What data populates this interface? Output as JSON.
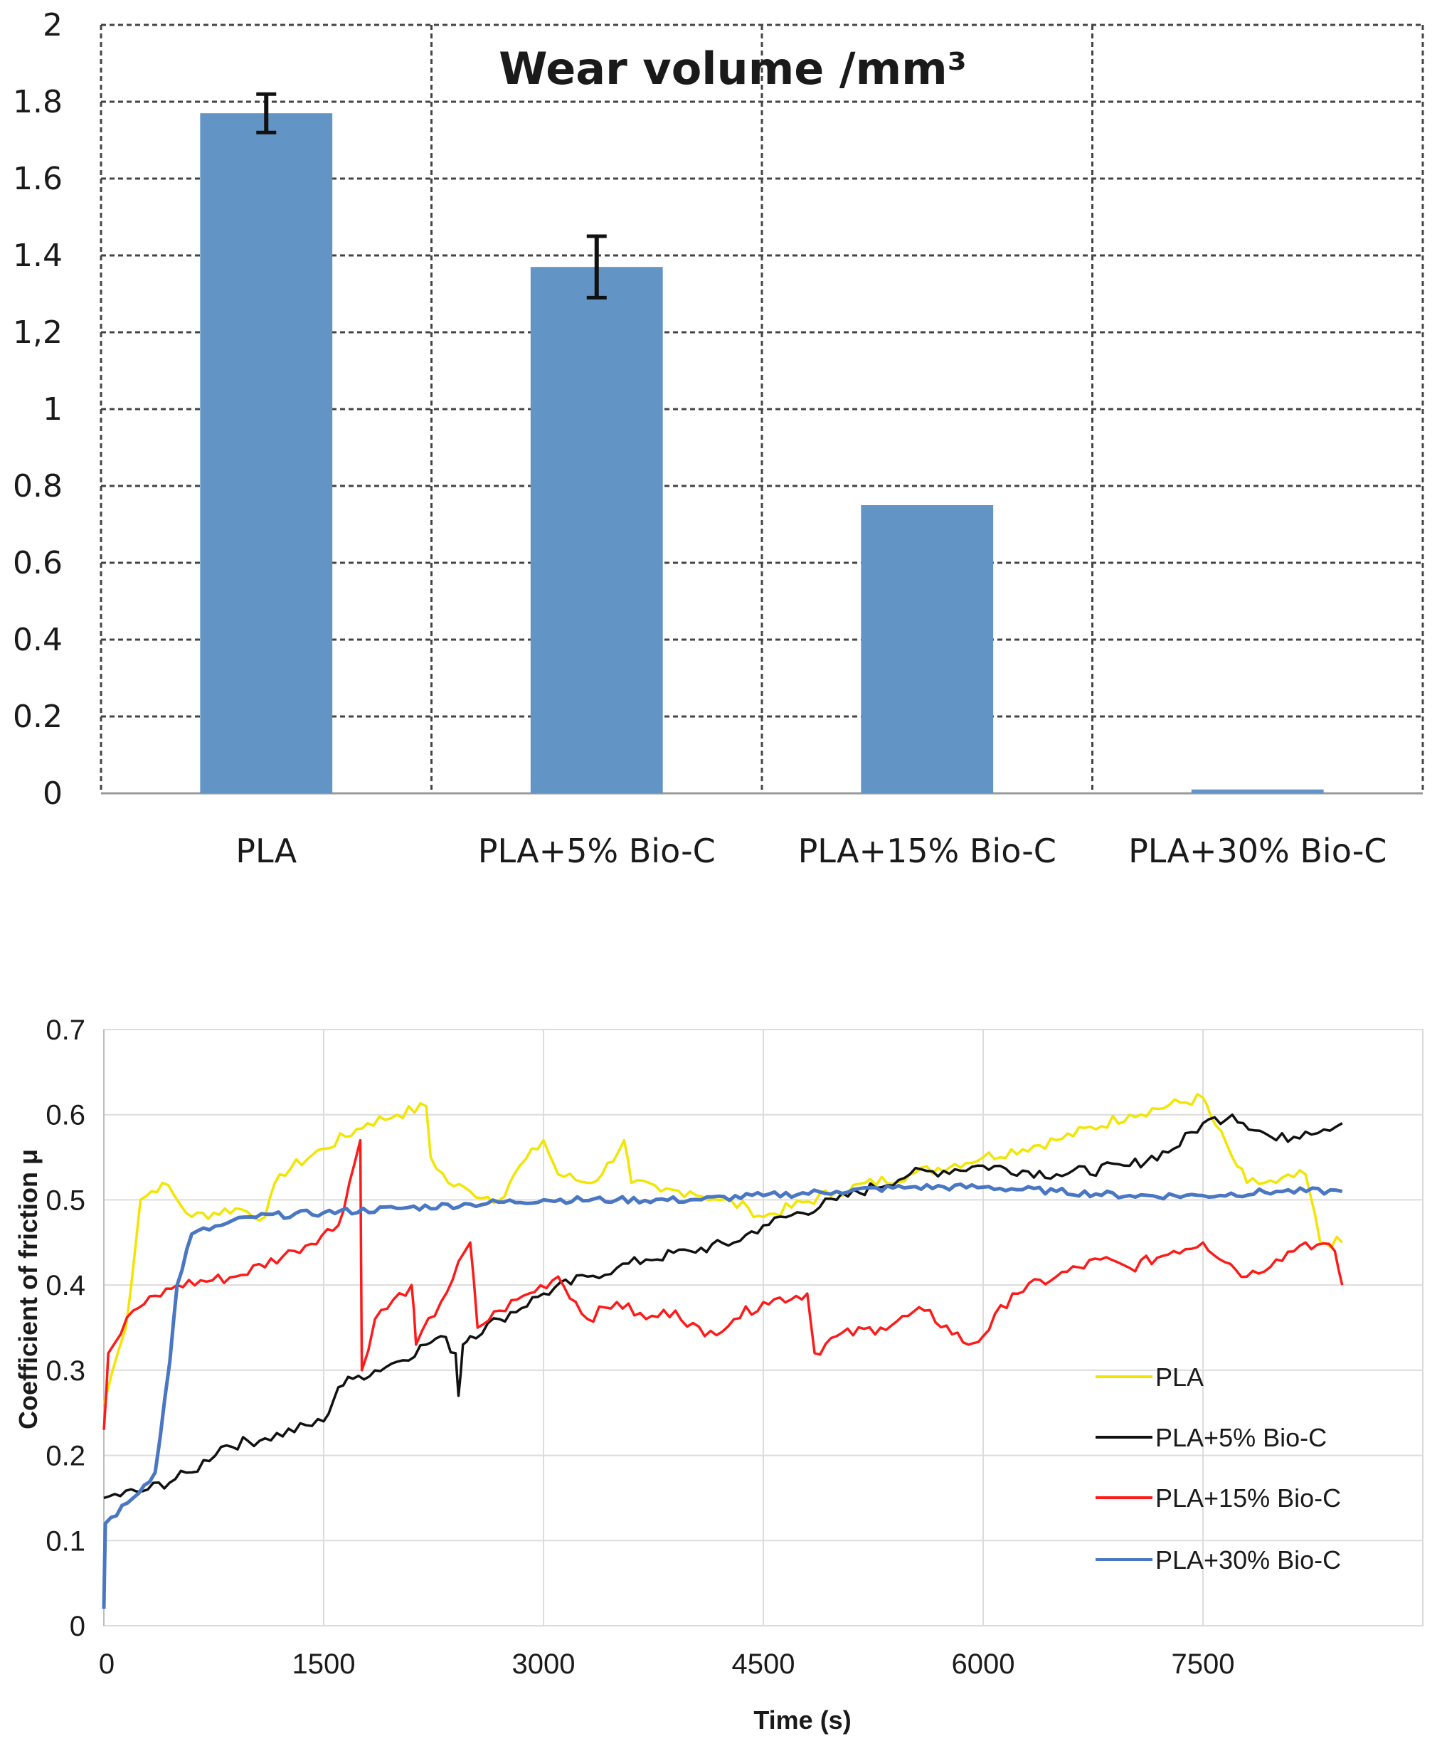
{
  "chart_data": [
    {
      "type": "bar",
      "title": "Wear volume /mm³",
      "categories": [
        "PLA",
        "PLA+5% Bio-C",
        "PLA+15% Bio-C",
        "PLA+30% Bio-C"
      ],
      "values": [
        1.77,
        1.37,
        0.75,
        0.01
      ],
      "error": [
        0.05,
        0.08,
        null,
        null
      ],
      "yticks": [
        "0",
        "0.2",
        "0.4",
        "0.6",
        "0.8",
        "1",
        "1,2",
        "1.4",
        "1.6",
        "1.8",
        "2"
      ],
      "ylim": [
        0,
        2
      ],
      "xlabel": "",
      "ylabel": "",
      "colors": {
        "bar": "#6394c6",
        "grid": "#444444",
        "axis": "#999999"
      }
    },
    {
      "type": "line",
      "xlabel": "Time (s)",
      "ylabel": "Coefficient of friction   μ",
      "xlim": [
        0,
        9000
      ],
      "ylim": [
        0,
        0.7
      ],
      "xticks": [
        "0",
        "1500",
        "3000",
        "4500",
        "6000",
        "7500"
      ],
      "yticks": [
        "0",
        "0.1",
        "0.2",
        "0.3",
        "0.4",
        "0.5",
        "0.6",
        "0.7"
      ],
      "series": [
        {
          "name": "PLA",
          "color": "#f2e600",
          "x": [
            0,
            60,
            150,
            250,
            400,
            600,
            900,
            1100,
            1200,
            1500,
            1800,
            2000,
            2200,
            2230,
            2350,
            2500,
            2700,
            2800,
            3000,
            3100,
            3300,
            3400,
            3550,
            3600,
            3800,
            4000,
            4200,
            4400,
            4500,
            5000,
            5500,
            6000,
            6500,
            7000,
            7500,
            7550,
            7700,
            7800,
            8000,
            8200,
            8300,
            8450
          ],
          "y": [
            0.26,
            0.3,
            0.35,
            0.5,
            0.52,
            0.48,
            0.49,
            0.48,
            0.53,
            0.56,
            0.59,
            0.6,
            0.61,
            0.55,
            0.52,
            0.51,
            0.5,
            0.53,
            0.57,
            0.53,
            0.52,
            0.53,
            0.57,
            0.52,
            0.51,
            0.51,
            0.5,
            0.49,
            0.48,
            0.51,
            0.53,
            0.55,
            0.57,
            0.6,
            0.62,
            0.6,
            0.55,
            0.52,
            0.52,
            0.53,
            0.45,
            0.45
          ]
        },
        {
          "name": "PLA+5% Bio-C",
          "color": "#111111",
          "x": [
            0,
            300,
            600,
            800,
            1100,
            1500,
            1600,
            1700,
            2000,
            2200,
            2300,
            2400,
            2420,
            2450,
            2500,
            2700,
            3000,
            3300,
            3500,
            3700,
            4000,
            4300,
            4500,
            5000,
            5500,
            6000,
            6500,
            7000,
            7300,
            7500,
            7700,
            8000,
            8200,
            8450
          ],
          "y": [
            0.15,
            0.16,
            0.18,
            0.21,
            0.22,
            0.24,
            0.28,
            0.29,
            0.31,
            0.33,
            0.34,
            0.32,
            0.27,
            0.33,
            0.34,
            0.36,
            0.39,
            0.41,
            0.42,
            0.43,
            0.44,
            0.45,
            0.47,
            0.5,
            0.53,
            0.54,
            0.53,
            0.54,
            0.56,
            0.59,
            0.6,
            0.57,
            0.58,
            0.59
          ]
        },
        {
          "name": "PLA+15% Bio-C",
          "color": "#ff1a1a",
          "x": [
            0,
            30,
            200,
            500,
            900,
            1300,
            1600,
            1750,
            1760,
            1850,
            2100,
            2130,
            2300,
            2500,
            2550,
            2700,
            2900,
            3100,
            3300,
            3500,
            3700,
            3900,
            4100,
            4300,
            4500,
            4800,
            4850,
            5000,
            5300,
            5600,
            5900,
            6000,
            6200,
            6500,
            6800,
            7000,
            7300,
            7500,
            7800,
            8000,
            8200,
            8400,
            8450
          ],
          "y": [
            0.23,
            0.32,
            0.37,
            0.4,
            0.41,
            0.44,
            0.47,
            0.57,
            0.3,
            0.36,
            0.4,
            0.33,
            0.38,
            0.45,
            0.35,
            0.37,
            0.39,
            0.41,
            0.36,
            0.38,
            0.36,
            0.37,
            0.34,
            0.36,
            0.38,
            0.39,
            0.32,
            0.34,
            0.35,
            0.37,
            0.33,
            0.34,
            0.39,
            0.41,
            0.43,
            0.42,
            0.44,
            0.45,
            0.41,
            0.43,
            0.45,
            0.44,
            0.4
          ]
        },
        {
          "name": "PLA+30% Bio-C",
          "color": "#4a77c3",
          "x": [
            0,
            10,
            200,
            350,
            450,
            500,
            600,
            800,
            1000,
            1500,
            2000,
            2500,
            3000,
            3500,
            4000,
            4500,
            5000,
            5500,
            6000,
            6500,
            7000,
            7500,
            8000,
            8450
          ],
          "y": [
            0.02,
            0.12,
            0.15,
            0.18,
            0.31,
            0.4,
            0.46,
            0.47,
            0.48,
            0.485,
            0.49,
            0.495,
            0.5,
            0.5,
            0.5,
            0.505,
            0.51,
            0.515,
            0.515,
            0.51,
            0.505,
            0.505,
            0.51,
            0.51
          ]
        }
      ]
    }
  ]
}
